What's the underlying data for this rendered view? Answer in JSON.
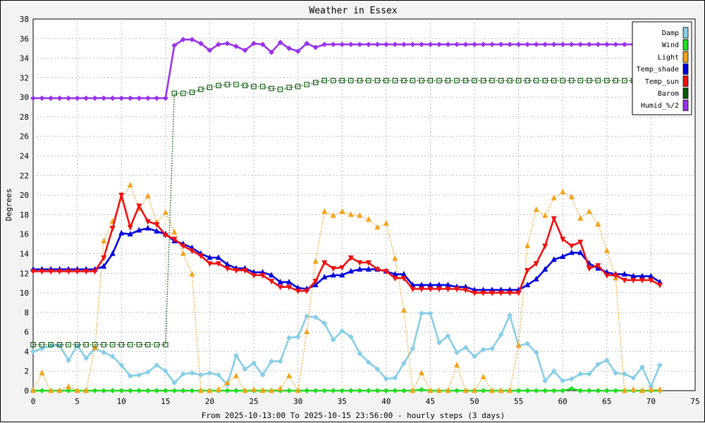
{
  "chart_data": {
    "type": "line",
    "title": "Weather in Essex",
    "xlabel": "From 2025-10-13:00 To 2025-10-15 23:56:00 - hourly steps (3 days)",
    "ylabel": "Degrees",
    "xlim": [
      0,
      75
    ],
    "ylim": [
      0,
      38
    ],
    "xticks": [
      0,
      5,
      10,
      15,
      20,
      25,
      30,
      35,
      40,
      45,
      50,
      55,
      60,
      65,
      70,
      75
    ],
    "yticks": [
      0,
      2,
      4,
      6,
      8,
      10,
      12,
      14,
      16,
      18,
      20,
      22,
      24,
      26,
      28,
      30,
      32,
      34,
      36,
      38
    ],
    "grid": true,
    "legend_position": "top-right",
    "x": [
      0,
      1,
      2,
      3,
      4,
      5,
      6,
      7,
      8,
      9,
      10,
      11,
      12,
      13,
      14,
      15,
      16,
      17,
      18,
      19,
      20,
      21,
      22,
      23,
      24,
      25,
      26,
      27,
      28,
      29,
      30,
      31,
      32,
      33,
      34,
      35,
      36,
      37,
      38,
      39,
      40,
      41,
      42,
      43,
      44,
      45,
      46,
      47,
      48,
      49,
      50,
      51,
      52,
      53,
      54,
      55,
      56,
      57,
      58,
      59,
      60,
      61,
      62,
      63,
      64,
      65,
      66,
      67,
      68,
      69,
      70,
      71
    ],
    "series": [
      {
        "name": "Damp",
        "color": "#87cee6",
        "style": "solid",
        "marker": "diamond",
        "values": [
          4.0,
          4.3,
          4.6,
          4.6,
          3.1,
          4.6,
          3.3,
          4.3,
          3.9,
          3.5,
          2.6,
          1.5,
          1.6,
          1.9,
          2.6,
          2.0,
          0.8,
          1.7,
          1.8,
          1.6,
          1.8,
          1.6,
          0.6,
          3.6,
          2.2,
          2.8,
          1.6,
          3.0,
          3.0,
          5.4,
          5.5,
          7.6,
          7.5,
          6.9,
          5.2,
          6.1,
          5.5,
          3.8,
          2.9,
          2.2,
          1.2,
          1.3,
          2.8,
          4.3,
          7.9,
          7.9,
          4.9,
          5.6,
          3.9,
          4.4,
          3.5,
          4.2,
          4.3,
          5.7,
          7.7,
          4.6,
          4.8,
          3.9,
          1.0,
          2.0,
          1.0,
          1.2,
          1.7,
          1.7,
          2.7,
          3.1,
          1.8,
          1.7,
          1.3,
          2.4,
          0.4,
          2.6
        ]
      },
      {
        "name": "Wind",
        "color": "#22dd22",
        "style": "solid",
        "marker": "diamond",
        "values": [
          0,
          0,
          0,
          0,
          0,
          0,
          0,
          0,
          0,
          0,
          0,
          0,
          0,
          0,
          0,
          0,
          0,
          0,
          0,
          0,
          0,
          0,
          0,
          0,
          0,
          0,
          0,
          0,
          0,
          0,
          0,
          0,
          0,
          0,
          0,
          0,
          0,
          0,
          0,
          0,
          0,
          0,
          0,
          0,
          0.1,
          0,
          0,
          0,
          0,
          0,
          0,
          0,
          0,
          0,
          0,
          0,
          0,
          0,
          0,
          0,
          0,
          0.2,
          0,
          0,
          0,
          0,
          0,
          0,
          0,
          0,
          0,
          0
        ]
      },
      {
        "name": "Light",
        "color": "#f5a31a",
        "style": "dotted",
        "marker": "triangle-up",
        "values": [
          0,
          1.8,
          0,
          0,
          0.4,
          0,
          0,
          4.4,
          15.3,
          17.3,
          19.6,
          21.0,
          18.6,
          19.9,
          17.2,
          18.2,
          16.2,
          14.0,
          11.9,
          0,
          0,
          0.1,
          0.8,
          1.5,
          0,
          0.1,
          0,
          0,
          0.2,
          1.5,
          0,
          6.0,
          13.2,
          18.3,
          17.9,
          18.3,
          18.0,
          17.9,
          17.5,
          16.7,
          17.1,
          13.5,
          8.2,
          0,
          1.8,
          0,
          0,
          0,
          2.6,
          0,
          0,
          1.4,
          0,
          0,
          0,
          4.6,
          14.8,
          18.5,
          17.9,
          19.7,
          20.3,
          19.8,
          17.6,
          18.3,
          17.0,
          14.3,
          11.5,
          0,
          0.1,
          0,
          0.1,
          0.1
        ]
      },
      {
        "name": "Temp_shade",
        "color": "#0000dd",
        "style": "solid",
        "marker": "triangle-up",
        "values": [
          12.4,
          12.4,
          12.4,
          12.4,
          12.4,
          12.4,
          12.4,
          12.4,
          12.7,
          14.0,
          16.1,
          16.0,
          16.4,
          16.6,
          16.3,
          16.0,
          15.3,
          15.0,
          14.6,
          14.0,
          13.6,
          13.6,
          12.9,
          12.5,
          12.5,
          12.1,
          12.1,
          11.8,
          11.1,
          11.1,
          10.5,
          10.4,
          10.8,
          11.6,
          11.8,
          11.8,
          12.2,
          12.4,
          12.4,
          12.4,
          12.2,
          11.9,
          11.9,
          10.8,
          10.8,
          10.8,
          10.8,
          10.8,
          10.6,
          10.6,
          10.3,
          10.3,
          10.3,
          10.3,
          10.3,
          10.3,
          10.8,
          11.4,
          12.4,
          13.4,
          13.7,
          14.1,
          14.1,
          13.0,
          12.5,
          12.1,
          11.9,
          11.9,
          11.7,
          11.7,
          11.7,
          11.1
        ]
      },
      {
        "name": "Temp_sun",
        "color": "#ee1111",
        "style": "solid",
        "marker": "triangle-down",
        "values": [
          12.2,
          12.2,
          12.2,
          12.2,
          12.2,
          12.2,
          12.2,
          12.2,
          13.6,
          16.6,
          20.0,
          16.7,
          18.9,
          17.3,
          17.0,
          15.9,
          15.5,
          14.8,
          14.3,
          13.8,
          13.0,
          13.0,
          12.5,
          12.3,
          12.3,
          11.8,
          11.8,
          11.2,
          10.6,
          10.6,
          10.2,
          10.2,
          11.2,
          13.1,
          12.5,
          12.6,
          13.6,
          13.1,
          13.1,
          12.4,
          12.2,
          11.5,
          11.5,
          10.4,
          10.4,
          10.4,
          10.4,
          10.4,
          10.4,
          10.3,
          10.0,
          10.0,
          10.0,
          10.0,
          10.0,
          10.0,
          12.3,
          13.0,
          14.8,
          17.6,
          15.5,
          14.8,
          15.2,
          12.5,
          12.8,
          11.8,
          11.8,
          11.3,
          11.3,
          11.3,
          11.3,
          10.8
        ]
      },
      {
        "name": "Barom",
        "color": "#0a5a0a",
        "style": "dotted",
        "marker": "square",
        "values": [
          4.7,
          4.7,
          4.7,
          4.7,
          4.7,
          4.7,
          4.7,
          4.7,
          4.7,
          4.7,
          4.7,
          4.7,
          4.7,
          4.7,
          4.7,
          4.7,
          30.4,
          30.4,
          30.5,
          30.8,
          31.0,
          31.2,
          31.3,
          31.3,
          31.2,
          31.1,
          31.1,
          30.9,
          30.8,
          31.0,
          31.1,
          31.3,
          31.5,
          31.7,
          31.7,
          31.7,
          31.7,
          31.7,
          31.7,
          31.7,
          31.7,
          31.7,
          31.7,
          31.7,
          31.7,
          31.7,
          31.7,
          31.7,
          31.7,
          31.7,
          31.7,
          31.7,
          31.7,
          31.7,
          31.7,
          31.7,
          31.7,
          31.7,
          31.7,
          31.7,
          31.7,
          31.7,
          31.7,
          31.7,
          31.7,
          31.7,
          31.7,
          31.7,
          31.7,
          31.7,
          31.7,
          31.7
        ]
      },
      {
        "name": "Humid_%/2",
        "color": "#9933ee",
        "style": "solid",
        "marker": "diamond",
        "values": [
          29.9,
          29.9,
          29.9,
          29.9,
          29.9,
          29.9,
          29.9,
          29.9,
          29.9,
          29.9,
          29.9,
          29.9,
          29.9,
          29.9,
          29.9,
          29.9,
          35.3,
          35.9,
          35.9,
          35.5,
          34.8,
          35.4,
          35.5,
          35.2,
          34.8,
          35.5,
          35.4,
          34.6,
          35.6,
          35.0,
          34.7,
          35.5,
          35.1,
          35.4,
          35.4,
          35.4,
          35.4,
          35.4,
          35.4,
          35.4,
          35.4,
          35.4,
          35.4,
          35.4,
          35.4,
          35.4,
          35.4,
          35.4,
          35.4,
          35.4,
          35.4,
          35.4,
          35.4,
          35.4,
          35.4,
          35.4,
          35.4,
          35.4,
          35.4,
          35.4,
          35.4,
          35.4,
          35.4,
          35.4,
          35.4,
          35.4,
          35.4,
          35.4,
          35.4,
          35.4,
          35.4,
          35.4
        ]
      }
    ]
  }
}
